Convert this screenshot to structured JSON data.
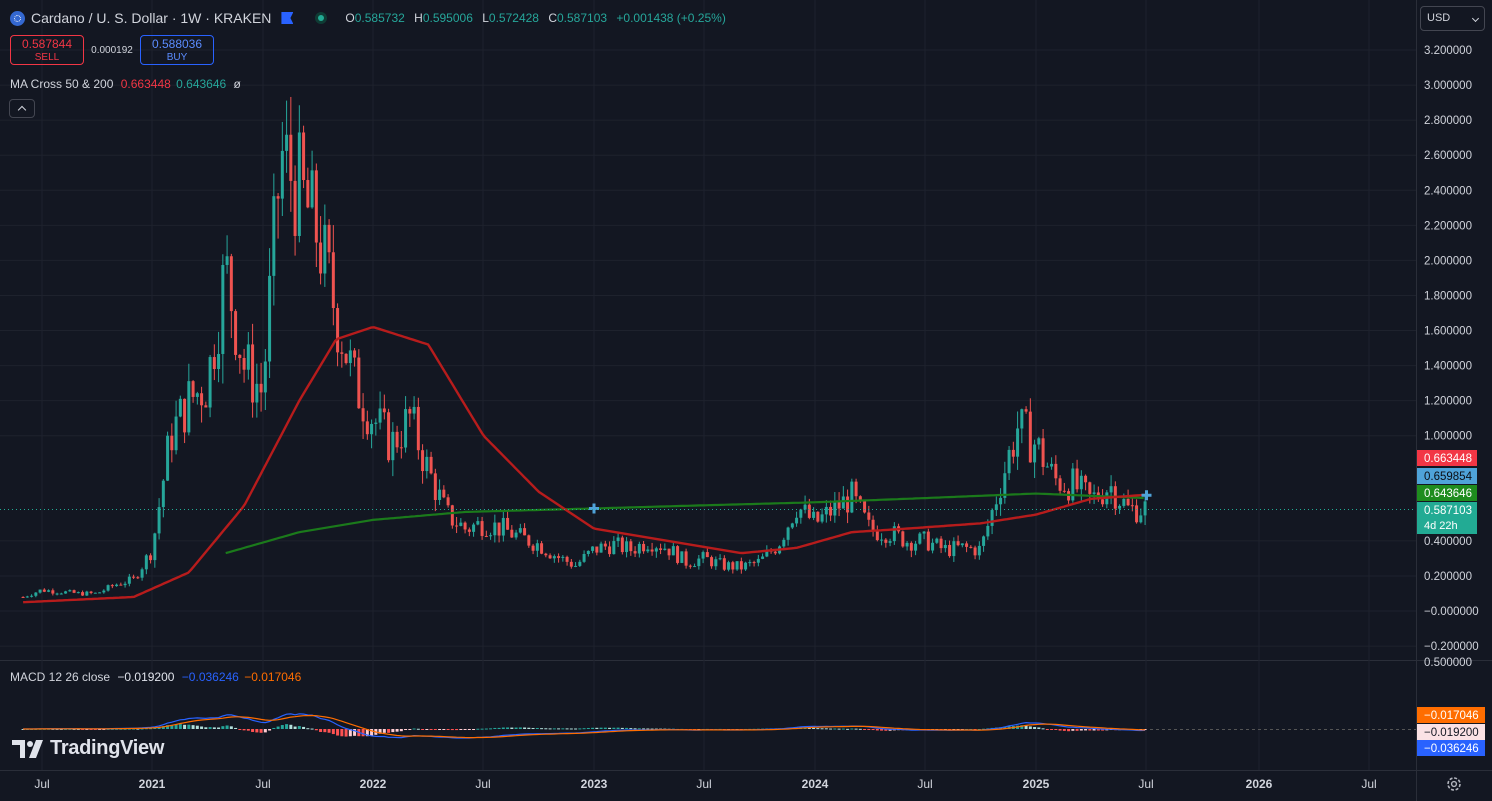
{
  "header": {
    "symbol": "Cardano / U. S. Dollar · 1W · KRAKEN",
    "ohlc": [
      {
        "k": "O",
        "v": "0.585732"
      },
      {
        "k": "H",
        "v": "0.595006"
      },
      {
        "k": "L",
        "v": "0.572428"
      },
      {
        "k": "C",
        "v": "0.587103"
      }
    ],
    "change": "+0.001438 (+0.25%)"
  },
  "trade": {
    "sell_price": "0.587844",
    "sell_label": "SELL",
    "spread": "0.000192",
    "buy_price": "0.588036",
    "buy_label": "BUY"
  },
  "ma_legend": {
    "name": "MA Cross 50 & 200",
    "v1": "0.663448",
    "v2": "0.643646",
    "extra": "ø"
  },
  "macd_legend": {
    "name": "MACD 12 26 close",
    "hist": "−0.019200",
    "macd": "−0.036246",
    "signal": "−0.017046"
  },
  "currency": "USD",
  "logo_text": "TradingView",
  "colors": {
    "bg": "#131722",
    "up": "#26a69a",
    "down": "#ef5350",
    "ma_fast": "#b71c1c",
    "ma_slow": "#1b7a1b",
    "macd": "#2962ff",
    "signal": "#ff6d00",
    "grid": "#1e222d"
  },
  "chart_data": {
    "type": "candlestick",
    "price_axis_labels": [
      "3.200000",
      "3.000000",
      "2.800000",
      "2.600000",
      "2.400000",
      "2.200000",
      "2.000000",
      "1.800000",
      "1.600000",
      "1.400000",
      "1.200000",
      "1.000000",
      "0.400000",
      "0.200000",
      "−0.000000",
      "−0.200000"
    ],
    "ylim": [
      -0.2,
      3.2
    ],
    "time_axis_labels": [
      "Jul",
      "2021",
      "Jul",
      "2022",
      "Jul",
      "2023",
      "Jul",
      "2024",
      "Jul",
      "2025",
      "Jul",
      "2026",
      "Jul"
    ],
    "price_tags": [
      {
        "value": "0.663448",
        "color": "#f23645",
        "text_color": "#ffffff"
      },
      {
        "value": "0.659854",
        "color": "#4fa3d9",
        "text_color": "#0b0e14"
      },
      {
        "value": "0.643646",
        "color": "#1e8c1e",
        "text_color": "#ffffff"
      },
      {
        "value": "0.587103",
        "sub": "4d 22h",
        "color": "#22ab94",
        "text_color": "#ffffff"
      }
    ],
    "macd_axis_labels": [
      "0.500000"
    ],
    "macd_tags": [
      {
        "value": "−0.017046",
        "color": "#ff6d00",
        "text_color": "#ffffff"
      },
      {
        "value": "−0.019200",
        "color": "#fbe2e5",
        "text_color": "#131722"
      },
      {
        "value": "−0.036246",
        "color": "#2962ff",
        "text_color": "#ffffff"
      }
    ],
    "price_path": [
      [
        "2020-06",
        0.08
      ],
      [
        "2020-07",
        0.12
      ],
      [
        "2020-09",
        0.1
      ],
      [
        "2020-10",
        0.1
      ],
      [
        "2020-11",
        0.15
      ],
      [
        "2020-12",
        0.18
      ],
      [
        "2021-01",
        0.35
      ],
      [
        "2021-02",
        1.0
      ],
      [
        "2021-03",
        1.2
      ],
      [
        "2021-04",
        1.3
      ],
      [
        "2021-05",
        1.95
      ],
      [
        "2021-06",
        1.4
      ],
      [
        "2021-07",
        1.25
      ],
      [
        "2021-08",
        2.6
      ],
      [
        "2021-09",
        2.4
      ],
      [
        "2021-10",
        2.15
      ],
      [
        "2021-11",
        1.7
      ],
      [
        "2021-12",
        1.3
      ],
      [
        "2022-01",
        1.1
      ],
      [
        "2022-02",
        0.95
      ],
      [
        "2022-03",
        1.1
      ],
      [
        "2022-04",
        0.8
      ],
      [
        "2022-05",
        0.55
      ],
      [
        "2022-06",
        0.47
      ],
      [
        "2022-07",
        0.5
      ],
      [
        "2022-08",
        0.47
      ],
      [
        "2022-09",
        0.42
      ],
      [
        "2022-10",
        0.38
      ],
      [
        "2022-11",
        0.31
      ],
      [
        "2022-12",
        0.26
      ],
      [
        "2023-01",
        0.35
      ],
      [
        "2023-02",
        0.38
      ],
      [
        "2023-03",
        0.35
      ],
      [
        "2023-04",
        0.4
      ],
      [
        "2023-05",
        0.36
      ],
      [
        "2023-06",
        0.28
      ],
      [
        "2023-07",
        0.3
      ],
      [
        "2023-08",
        0.26
      ],
      [
        "2023-09",
        0.25
      ],
      [
        "2023-10",
        0.28
      ],
      [
        "2023-11",
        0.38
      ],
      [
        "2023-12",
        0.6
      ],
      [
        "2024-01",
        0.5
      ],
      [
        "2024-02",
        0.58
      ],
      [
        "2024-03",
        0.65
      ],
      [
        "2024-04",
        0.46
      ],
      [
        "2024-05",
        0.45
      ],
      [
        "2024-06",
        0.4
      ],
      [
        "2024-07",
        0.4
      ],
      [
        "2024-08",
        0.35
      ],
      [
        "2024-09",
        0.36
      ],
      [
        "2024-10",
        0.35
      ],
      [
        "2024-11",
        0.7
      ],
      [
        "2024-12",
        1.05
      ],
      [
        "2025-01",
        0.95
      ],
      [
        "2025-02",
        0.75
      ],
      [
        "2025-03",
        0.72
      ],
      [
        "2025-04",
        0.63
      ],
      [
        "2025-05",
        0.72
      ],
      [
        "2025-06",
        0.58
      ],
      [
        "2025-07",
        0.587
      ]
    ],
    "ma50_path": [
      [
        "2020-06",
        0.05
      ],
      [
        "2020-12",
        0.08
      ],
      [
        "2021-03",
        0.22
      ],
      [
        "2021-06",
        0.6
      ],
      [
        "2021-09",
        1.2
      ],
      [
        "2021-11",
        1.55
      ],
      [
        "2022-01",
        1.62
      ],
      [
        "2022-04",
        1.52
      ],
      [
        "2022-07",
        1.0
      ],
      [
        "2022-10",
        0.68
      ],
      [
        "2023-01",
        0.47
      ],
      [
        "2023-05",
        0.4
      ],
      [
        "2023-09",
        0.33
      ],
      [
        "2023-12",
        0.36
      ],
      [
        "2024-03",
        0.45
      ],
      [
        "2024-06",
        0.47
      ],
      [
        "2024-10",
        0.5
      ],
      [
        "2025-01",
        0.55
      ],
      [
        "2025-04",
        0.64
      ],
      [
        "2025-07",
        0.663
      ]
    ],
    "ma200_path": [
      [
        "2021-05",
        0.33
      ],
      [
        "2021-09",
        0.45
      ],
      [
        "2022-01",
        0.52
      ],
      [
        "2022-06",
        0.565
      ],
      [
        "2023-01",
        0.585
      ],
      [
        "2023-06",
        0.6
      ],
      [
        "2024-01",
        0.62
      ],
      [
        "2024-06",
        0.64
      ],
      [
        "2025-01",
        0.67
      ],
      [
        "2025-07",
        0.644
      ]
    ],
    "cross_markers": [
      [
        "2023-01",
        0.585
      ],
      [
        "2025-07",
        0.66
      ]
    ]
  }
}
